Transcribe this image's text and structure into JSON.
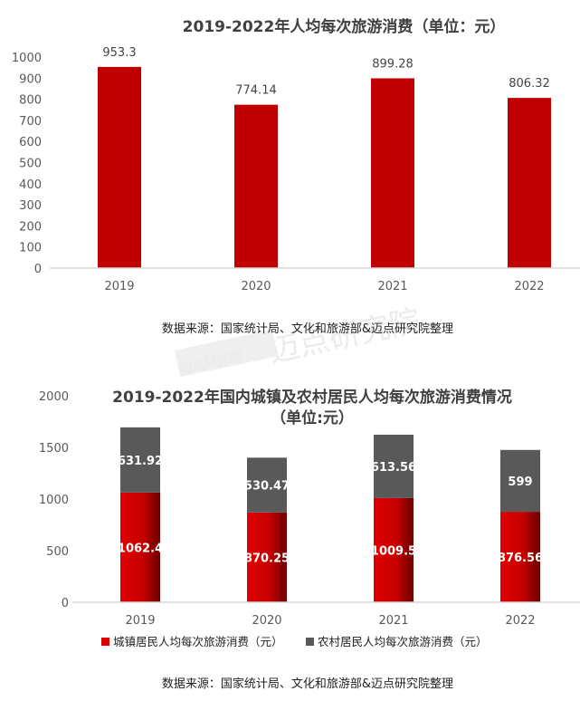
{
  "watermark": "迈点研究院",
  "chart_data": [
    {
      "type": "bar",
      "title": "2019-2022年人均每次旅游消费（单位：元）",
      "categories": [
        "2019",
        "2020",
        "2021",
        "2022"
      ],
      "values": [
        953.3,
        774.14,
        899.28,
        806.32
      ],
      "data_labels": [
        "953.3",
        "774.14",
        "899.28",
        "806.32"
      ],
      "ylim": [
        0,
        1000
      ],
      "yticks": [
        0,
        100,
        200,
        300,
        400,
        500,
        600,
        700,
        800,
        900,
        1000
      ],
      "grid": false,
      "color": "#C00000",
      "source": "数据来源：国家统计局、文化和旅游部&迈点研究院整理"
    },
    {
      "type": "stacked-bar",
      "title": "2019-2022年国内城镇及农村居民人均每次旅游消费情况",
      "subtitle": "（单位:元）",
      "categories": [
        "2019",
        "2020",
        "2021",
        "2022"
      ],
      "series": [
        {
          "name": "城镇居民人均每次旅游消费（元）",
          "values": [
            1062.4,
            870.25,
            1009.5,
            876.56
          ],
          "data_labels": [
            "1062.4",
            "870.25",
            "1009.5",
            "876.56"
          ],
          "color": "#DC0000"
        },
        {
          "name": "农村居民人均每次旅游消费（元）",
          "values": [
            631.92,
            530.47,
            613.56,
            599
          ],
          "data_labels": [
            "631.92",
            "530.47",
            "613.56",
            "599"
          ],
          "color": "#595959"
        }
      ],
      "ylim": [
        0,
        2000
      ],
      "yticks": [
        0,
        500,
        1000,
        1500,
        2000
      ],
      "grid": false,
      "legend": "bottom",
      "source": "数据来源：国家统计局、文化和旅游部&迈点研究院整理"
    }
  ]
}
